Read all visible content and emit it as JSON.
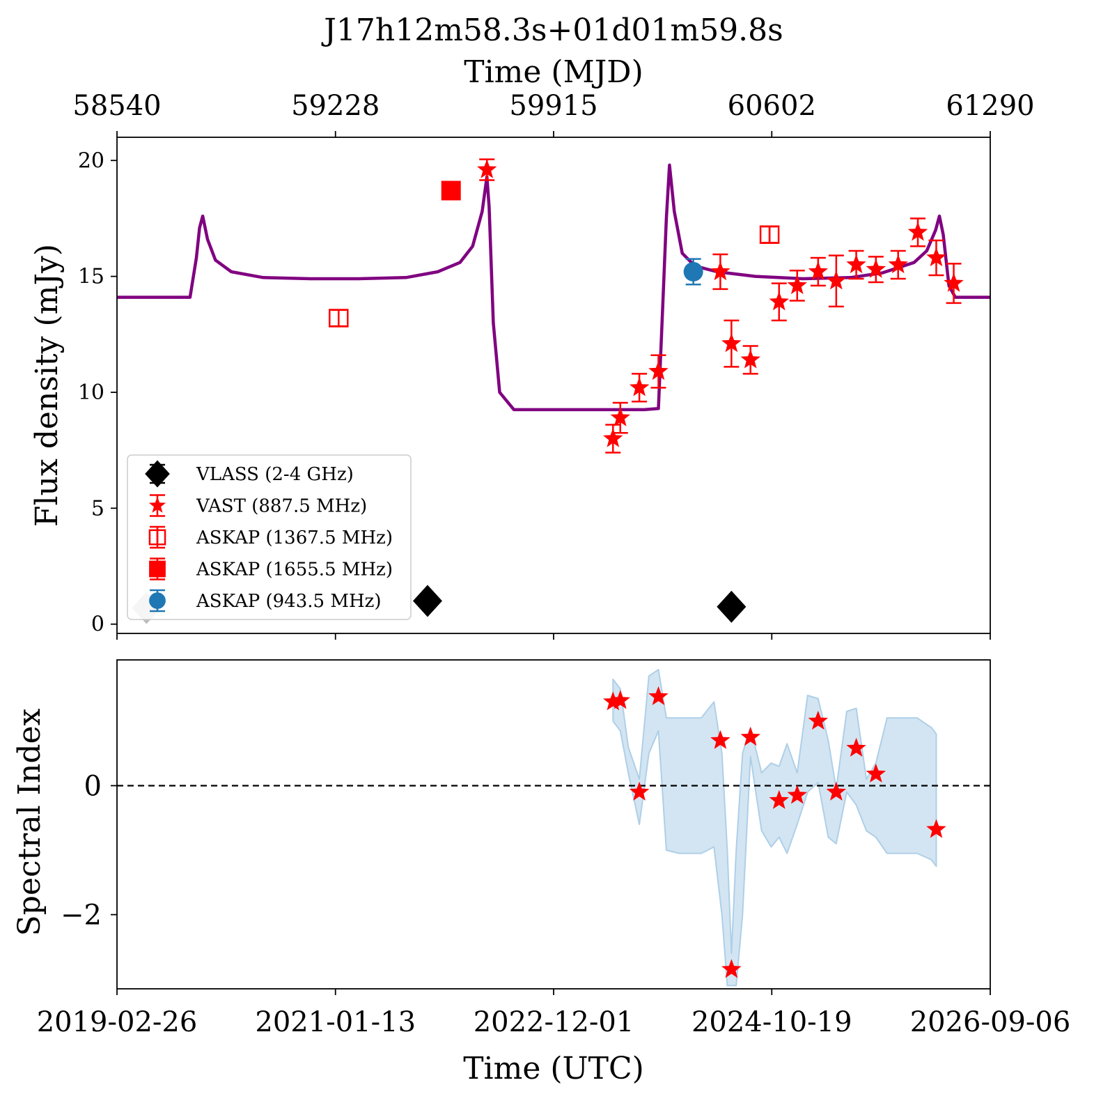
{
  "chart_data": [
    {
      "type": "scatter",
      "panel": "top",
      "title": "J17h12m58.3s+01d01m59.8s",
      "top_xlabel": "Time (MJD)",
      "top_xticks": [
        "58540",
        "59228",
        "59915",
        "60602",
        "61290"
      ],
      "ylabel": "Flux density (mJy)",
      "yticks": [
        "0",
        "5",
        "10",
        "15",
        "20"
      ],
      "xlim_mjd": [
        58540,
        61290
      ],
      "ylim": [
        -0.4,
        21
      ],
      "legend_position": "lower-left",
      "series": [
        {
          "name": "VLASS (2-4 GHz)",
          "marker": "diamond",
          "color": "#000000",
          "points": [
            {
              "mjd": 59518,
              "y": 1.0
            },
            {
              "mjd": 60475,
              "y": 0.75
            }
          ]
        },
        {
          "marker": "diamond",
          "color": "#bbbbbb",
          "points": [
            {
              "mjd": 58633,
              "y": 0.7
            }
          ]
        },
        {
          "name": "VAST (887.5 MHz)",
          "marker": "star",
          "color": "#ff0000",
          "points": [
            {
              "mjd": 59705,
              "y": 19.6,
              "err": 0.45
            },
            {
              "mjd": 60102,
              "y": 8.0,
              "err": 0.6
            },
            {
              "mjd": 60125,
              "y": 8.9,
              "err": 0.65
            },
            {
              "mjd": 60185,
              "y": 10.2,
              "err": 0.6
            },
            {
              "mjd": 60245,
              "y": 10.9,
              "err": 0.7
            },
            {
              "mjd": 60440,
              "y": 15.2,
              "err": 0.75
            },
            {
              "mjd": 60475,
              "y": 12.1,
              "err": 1.0
            },
            {
              "mjd": 60535,
              "y": 11.4,
              "err": 0.6
            },
            {
              "mjd": 60625,
              "y": 13.9,
              "err": 0.8
            },
            {
              "mjd": 60682,
              "y": 14.6,
              "err": 0.65
            },
            {
              "mjd": 60748,
              "y": 15.2,
              "err": 0.6
            },
            {
              "mjd": 60805,
              "y": 14.8,
              "err": 1.1
            },
            {
              "mjd": 60868,
              "y": 15.5,
              "err": 0.6
            },
            {
              "mjd": 60930,
              "y": 15.3,
              "err": 0.55
            },
            {
              "mjd": 61000,
              "y": 15.5,
              "err": 0.6
            },
            {
              "mjd": 61062,
              "y": 16.9,
              "err": 0.6
            },
            {
              "mjd": 61120,
              "y": 15.8,
              "err": 0.75
            },
            {
              "mjd": 61175,
              "y": 14.7,
              "err": 0.85
            }
          ]
        },
        {
          "name": "ASKAP (1367.5 MHz)",
          "marker": "open-square",
          "color": "#ff0000",
          "points": [
            {
              "mjd": 59238,
              "y": 13.2,
              "err": 0.35
            },
            {
              "mjd": 60595,
              "y": 16.8,
              "err": 0.35
            }
          ]
        },
        {
          "name": "ASKAP (1655.5 MHz)",
          "marker": "filled-square",
          "color": "#ff0000",
          "points": [
            {
              "mjd": 59592,
              "y": 18.7,
              "err": 0.3
            }
          ]
        },
        {
          "name": "ASKAP (943.5 MHz)",
          "marker": "circle",
          "color": "#1f77b4",
          "points": [
            {
              "mjd": 60355,
              "y": 15.2,
              "err": 0.55
            }
          ]
        }
      ],
      "model_curve": {
        "color": "#800080",
        "mjd": [
          58540,
          58770,
          58790,
          58800,
          58810,
          58825,
          58850,
          58900,
          59000,
          59150,
          59300,
          59450,
          59550,
          59620,
          59660,
          59690,
          59705,
          59712,
          59725,
          59745,
          59790,
          59950,
          60100,
          60200,
          60245,
          60258,
          60270,
          60280,
          60295,
          60320,
          60360,
          60430,
          60550,
          60700,
          60850,
          60950,
          61050,
          61090,
          61118,
          61130,
          61142,
          61160,
          61180,
          61290
        ],
        "y": [
          14.1,
          14.1,
          15.8,
          17.1,
          17.6,
          16.6,
          15.7,
          15.2,
          14.95,
          14.9,
          14.9,
          14.95,
          15.2,
          15.6,
          16.3,
          17.8,
          19.3,
          18.0,
          13.0,
          10.0,
          9.25,
          9.25,
          9.25,
          9.25,
          9.3,
          13.5,
          17.5,
          19.8,
          17.8,
          16.0,
          15.45,
          15.2,
          15.0,
          14.9,
          14.95,
          15.15,
          15.6,
          16.1,
          17.0,
          17.6,
          16.8,
          14.6,
          14.1,
          14.1
        ]
      }
    },
    {
      "type": "scatter",
      "panel": "bottom",
      "ylabel": "Spectral Index",
      "yticks": [
        "−2",
        "0"
      ],
      "xlabel": "Time (UTC)",
      "xticks": [
        "2019-02-26",
        "2021-01-13",
        "2022-12-01",
        "2024-10-19",
        "2026-09-06"
      ],
      "ylim": [
        -3.15,
        1.95
      ],
      "reference_line": {
        "y": 0,
        "style": "dashed",
        "color": "#000000"
      },
      "points": [
        {
          "mjd": 60102,
          "y": 1.3
        },
        {
          "mjd": 60125,
          "y": 1.32
        },
        {
          "mjd": 60185,
          "y": -0.1
        },
        {
          "mjd": 60245,
          "y": 1.38
        },
        {
          "mjd": 60440,
          "y": 0.7
        },
        {
          "mjd": 60475,
          "y": -2.85
        },
        {
          "mjd": 60535,
          "y": 0.75
        },
        {
          "mjd": 60625,
          "y": -0.23
        },
        {
          "mjd": 60682,
          "y": -0.15
        },
        {
          "mjd": 60748,
          "y": 1.0
        },
        {
          "mjd": 60805,
          "y": -0.1
        },
        {
          "mjd": 60868,
          "y": 0.58
        },
        {
          "mjd": 60930,
          "y": 0.18
        },
        {
          "mjd": 61120,
          "y": -0.68
        }
      ],
      "band": {
        "color": "#aecfe8",
        "mjd": [
          60102,
          60125,
          60150,
          60185,
          60215,
          60245,
          60270,
          60310,
          60380,
          60420,
          60445,
          60462,
          60475,
          60490,
          60510,
          60535,
          60570,
          60600,
          60625,
          60650,
          60682,
          60715,
          60748,
          60780,
          60805,
          60838,
          60868,
          60900,
          60930,
          60965,
          61000,
          61060,
          61105,
          61120
        ],
        "upper": [
          1.65,
          1.5,
          0.6,
          0.1,
          1.7,
          1.8,
          1.05,
          1.05,
          1.05,
          1.3,
          0.5,
          -1.0,
          -2.6,
          -1.0,
          0.5,
          0.9,
          0.2,
          0.35,
          0.3,
          0.65,
          0.2,
          1.4,
          1.35,
          0.7,
          -0.05,
          1.15,
          1.2,
          0.1,
          0.35,
          1.05,
          1.05,
          1.05,
          0.9,
          0.8
        ],
        "lower": [
          1.0,
          0.85,
          0.2,
          -0.6,
          0.5,
          0.85,
          -1.0,
          -1.05,
          -1.05,
          -0.95,
          -2.0,
          -3.1,
          -3.1,
          -3.1,
          -2.0,
          0.45,
          -0.7,
          -0.95,
          -0.8,
          -1.05,
          -0.6,
          -0.1,
          0.05,
          -0.8,
          -0.9,
          -0.1,
          -0.3,
          -0.7,
          -0.8,
          -1.05,
          -1.05,
          -1.05,
          -1.15,
          -1.25
        ]
      }
    }
  ]
}
